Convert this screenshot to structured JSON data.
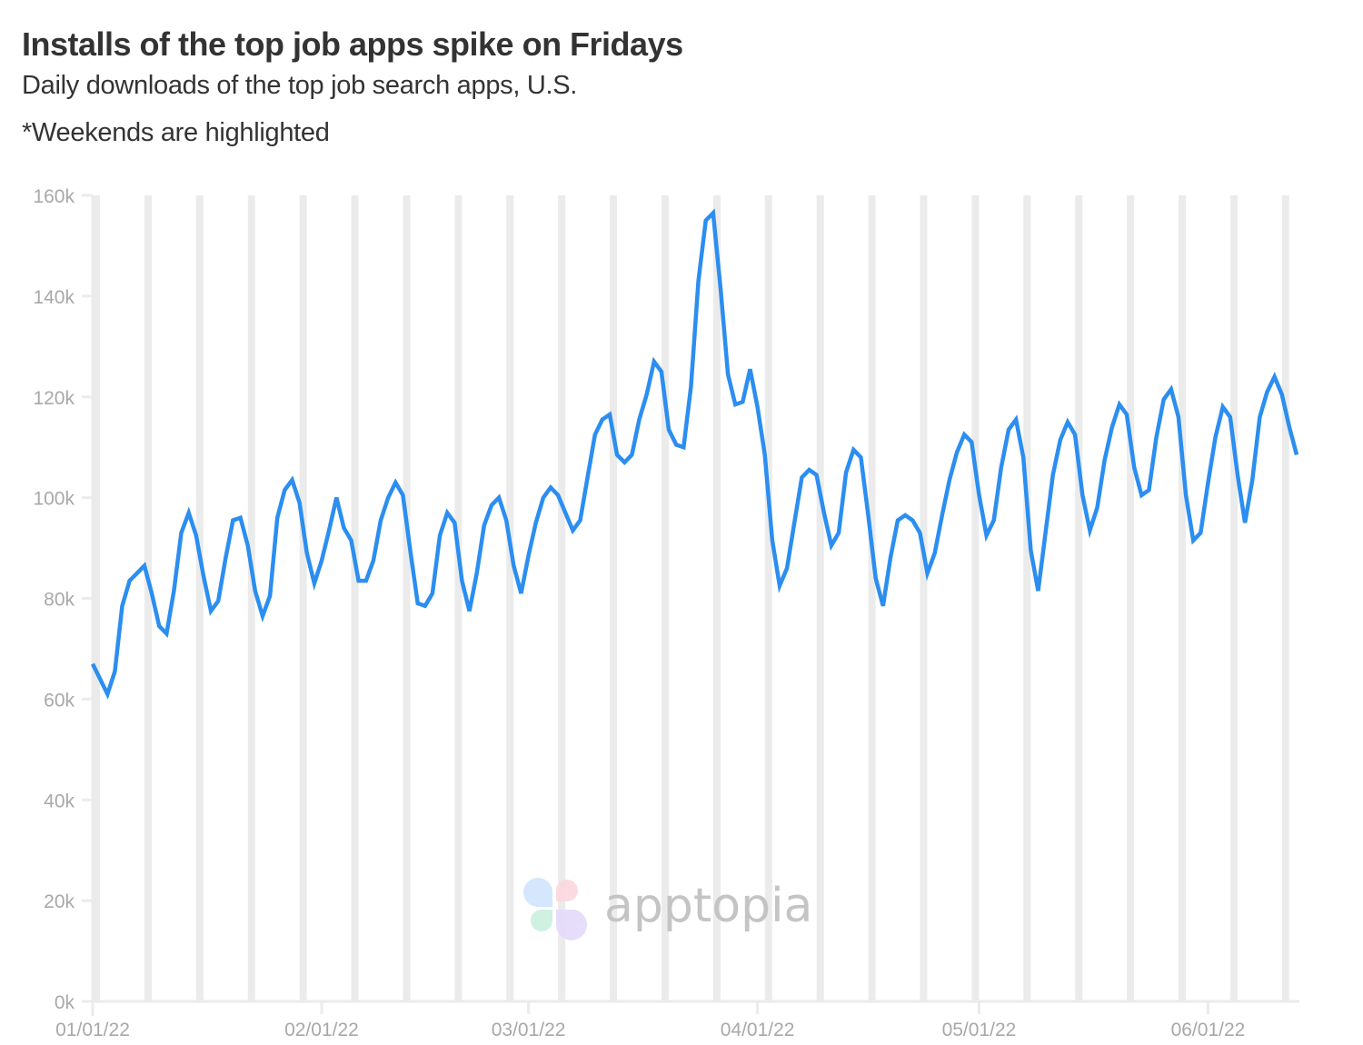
{
  "header": {
    "title": "Installs of the top job apps spike on Fridays",
    "subtitle": "Daily downloads of the top job search apps, U.S.",
    "note": "*Weekends are highlighted"
  },
  "watermark": {
    "text": "apptopia"
  },
  "colors": {
    "line": "#2b8ef0",
    "weekend_band": "#ebebeb",
    "axis": "#ebebeb",
    "tick_text": "#a8a8a8",
    "title_text": "#333333",
    "logo_petals": [
      "#d2e6fc",
      "#fcd9e0",
      "#cdf1e0",
      "#e5dcfb"
    ]
  },
  "chart_data": {
    "type": "line",
    "title": "Installs of the top job apps spike on Fridays",
    "subtitle": "Daily downloads of the top job search apps, U.S.",
    "annotation": "*Weekends are highlighted",
    "xlabel": "",
    "ylabel": "",
    "ylim": [
      0,
      160000
    ],
    "y_ticks": [
      0,
      20000,
      40000,
      60000,
      80000,
      100000,
      120000,
      140000,
      160000
    ],
    "y_tick_labels": [
      "0k",
      "20k",
      "40k",
      "60k",
      "80k",
      "100k",
      "120k",
      "140k",
      "160k"
    ],
    "x_start": "2022-01-01",
    "x_end": "2022-06-14",
    "x_tick_labels": [
      "01/01/22",
      "02/01/22",
      "03/01/22",
      "04/01/22",
      "05/01/22",
      "06/01/22"
    ],
    "x_tick_day_index": [
      0,
      31,
      59,
      90,
      120,
      151
    ],
    "grid": false,
    "legend": null,
    "weekend_highlight": true,
    "series": [
      {
        "name": "Daily downloads",
        "values": [
          67000,
          64000,
          61000,
          65500,
          78500,
          83500,
          85000,
          86500,
          81000,
          74500,
          73000,
          81500,
          93000,
          97000,
          92500,
          84500,
          77500,
          79500,
          88000,
          95500,
          96000,
          90500,
          81500,
          76500,
          80500,
          96000,
          101500,
          103500,
          99000,
          89000,
          83000,
          87500,
          93500,
          100000,
          94000,
          91500,
          83500,
          83500,
          87500,
          95500,
          100000,
          103000,
          100500,
          89500,
          79000,
          78500,
          81000,
          92500,
          97000,
          95000,
          83500,
          77500,
          85000,
          94500,
          98500,
          100000,
          95500,
          86500,
          81000,
          88500,
          95000,
          100000,
          102000,
          100500,
          97000,
          93500,
          95500,
          104000,
          112500,
          115500,
          116500,
          108500,
          107000,
          108500,
          115500,
          120500,
          127000,
          125000,
          113500,
          110500,
          110000,
          122000,
          143000,
          155000,
          156500,
          141500,
          124500,
          118500,
          119000,
          125500,
          118000,
          108500,
          91500,
          82500,
          86000,
          95000,
          104000,
          105500,
          104500,
          97000,
          90500,
          93000,
          105000,
          109500,
          108000,
          96500,
          84000,
          78500,
          88000,
          95500,
          96500,
          95500,
          93000,
          85000,
          89000,
          96500,
          103500,
          109000,
          112500,
          111000,
          100500,
          92500,
          95500,
          106000,
          113500,
          115500,
          108000,
          89500,
          81500,
          93000,
          104500,
          111500,
          115000,
          112500,
          100500,
          93500,
          98000,
          107500,
          114000,
          118500,
          116500,
          106000,
          100500,
          101500,
          112000,
          119500,
          121500,
          116000,
          100500,
          91500,
          93000,
          103000,
          112000,
          118000,
          116000,
          104500,
          95000,
          103500,
          116000,
          121000,
          124000,
          120500,
          114000,
          108500
        ]
      }
    ]
  }
}
